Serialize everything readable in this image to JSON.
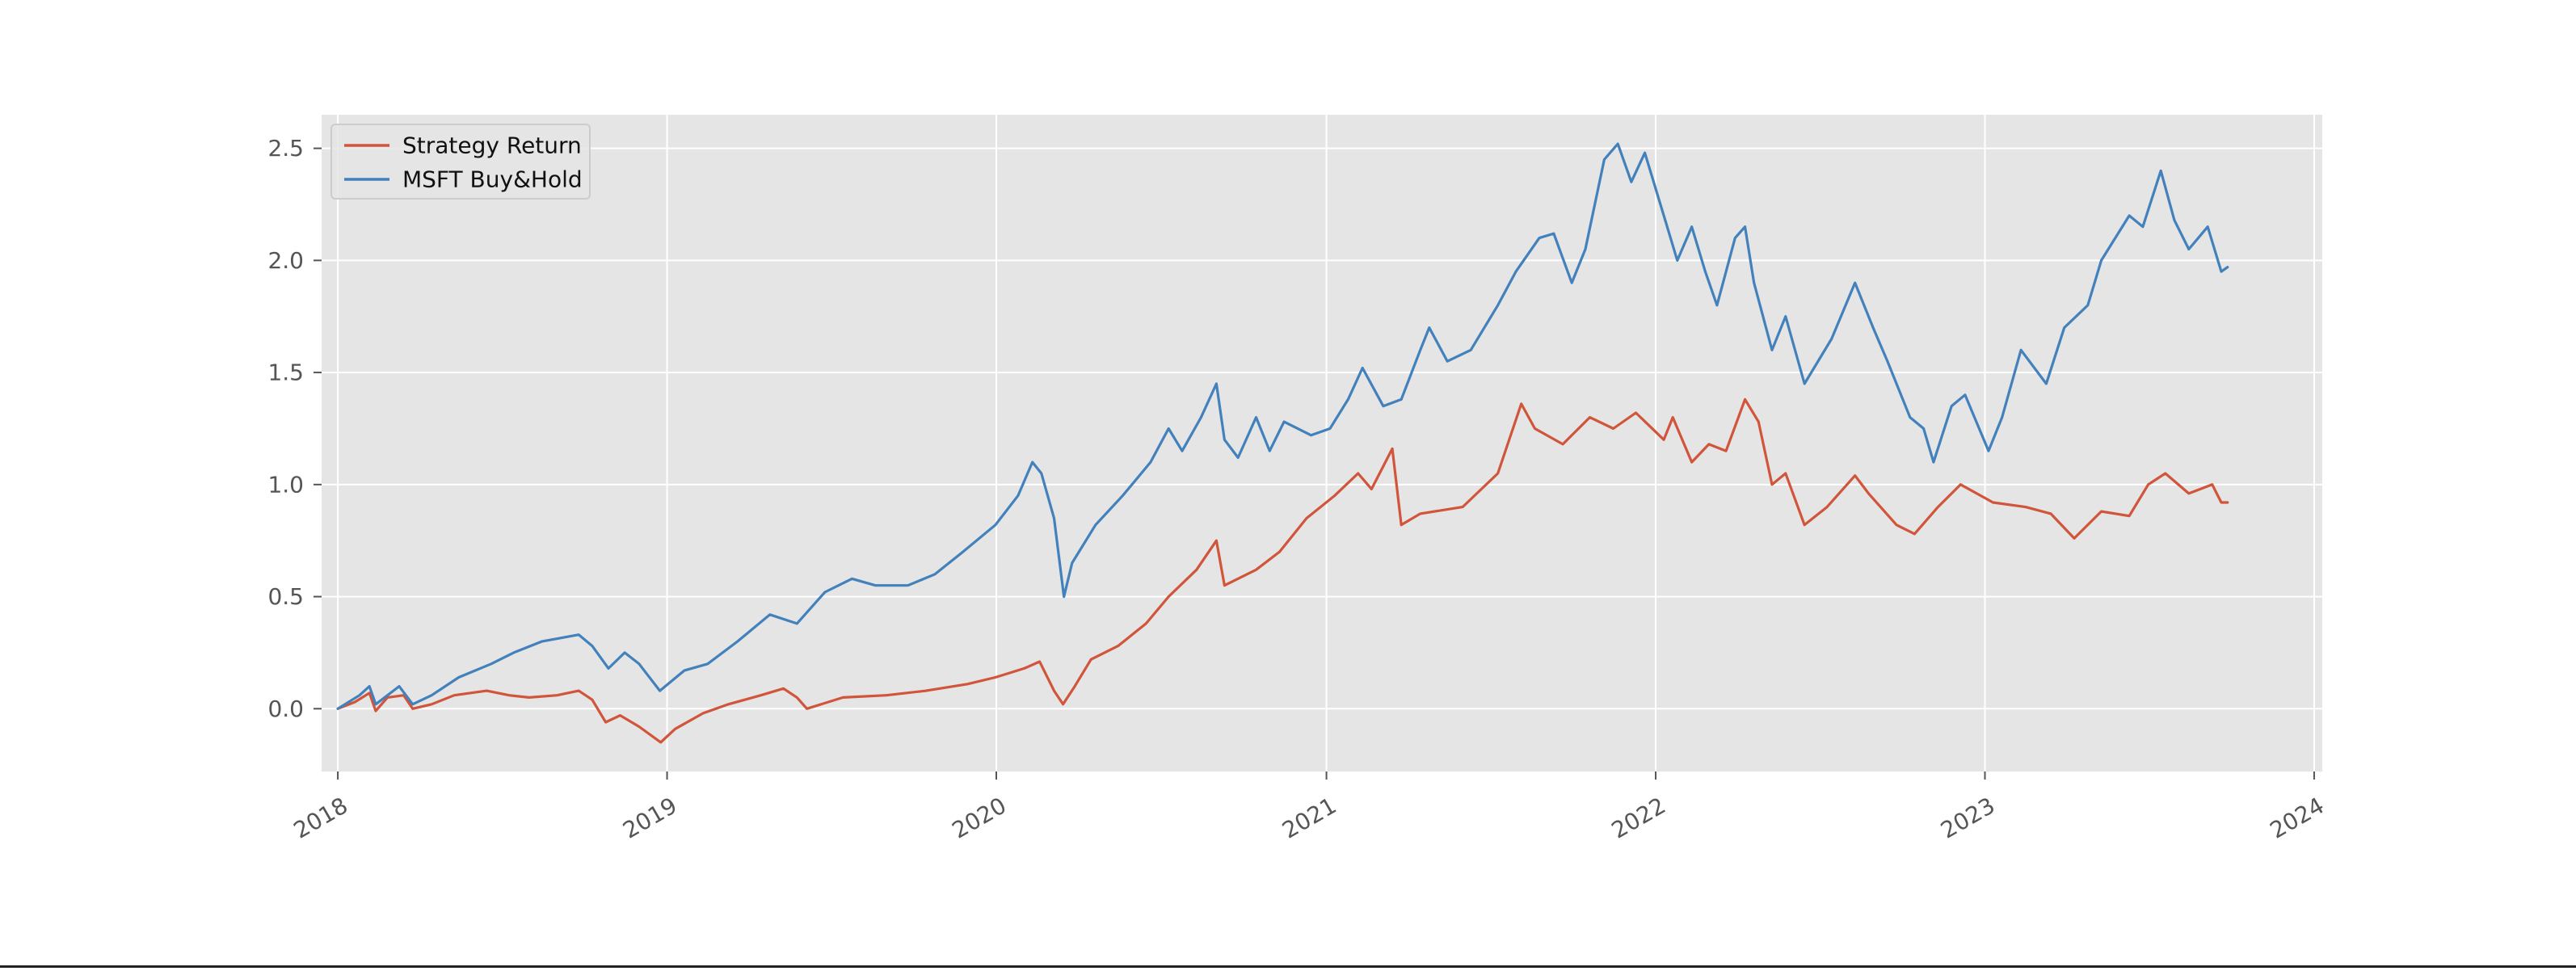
{
  "colors": {
    "plot_background": "#e5e5e5",
    "grid": "#ffffff",
    "tick_text": "#555555",
    "legend_background": "#e5e5e5",
    "legend_border": "#cccccc",
    "legend_text": "#111111"
  },
  "chart_data": {
    "type": "line",
    "title": "",
    "xlabel": "",
    "ylabel": "",
    "x_axis_type": "date",
    "xlim": [
      "2017-12-14",
      "2024-01-10"
    ],
    "ylim": [
      -0.28,
      2.65
    ],
    "grid": true,
    "legend_placement": "top-left",
    "x_ticks": [
      {
        "date": "2018-01-01",
        "label": "2018"
      },
      {
        "date": "2019-01-01",
        "label": "2019"
      },
      {
        "date": "2020-01-01",
        "label": "2020"
      },
      {
        "date": "2021-01-01",
        "label": "2021"
      },
      {
        "date": "2022-01-01",
        "label": "2022"
      },
      {
        "date": "2023-01-01",
        "label": "2023"
      },
      {
        "date": "2024-01-01",
        "label": "2024"
      }
    ],
    "y_ticks": [
      {
        "value": 0.0,
        "label": "0.0"
      },
      {
        "value": 0.5,
        "label": "0.5"
      },
      {
        "value": 1.0,
        "label": "1.0"
      },
      {
        "value": 1.5,
        "label": "1.5"
      },
      {
        "value": 2.0,
        "label": "2.0"
      },
      {
        "value": 2.5,
        "label": "2.5"
      }
    ],
    "series": [
      {
        "name": "Strategy Return",
        "color": "#d0553b",
        "points": [
          [
            "2018-01-01",
            0.0
          ],
          [
            "2018-01-20",
            0.03
          ],
          [
            "2018-02-05",
            0.07
          ],
          [
            "2018-02-12",
            -0.01
          ],
          [
            "2018-02-25",
            0.05
          ],
          [
            "2018-03-15",
            0.06
          ],
          [
            "2018-03-25",
            0.0
          ],
          [
            "2018-04-15",
            0.02
          ],
          [
            "2018-05-10",
            0.06
          ],
          [
            "2018-06-15",
            0.08
          ],
          [
            "2018-07-10",
            0.06
          ],
          [
            "2018-08-01",
            0.05
          ],
          [
            "2018-09-01",
            0.06
          ],
          [
            "2018-09-25",
            0.08
          ],
          [
            "2018-10-10",
            0.04
          ],
          [
            "2018-10-25",
            -0.06
          ],
          [
            "2018-11-10",
            -0.03
          ],
          [
            "2018-12-01",
            -0.08
          ],
          [
            "2018-12-25",
            -0.15
          ],
          [
            "2019-01-10",
            -0.09
          ],
          [
            "2019-02-10",
            -0.02
          ],
          [
            "2019-03-10",
            0.02
          ],
          [
            "2019-04-15",
            0.06
          ],
          [
            "2019-05-10",
            0.09
          ],
          [
            "2019-05-25",
            0.05
          ],
          [
            "2019-06-05",
            0.0
          ],
          [
            "2019-07-15",
            0.05
          ],
          [
            "2019-09-01",
            0.06
          ],
          [
            "2019-10-15",
            0.08
          ],
          [
            "2019-11-30",
            0.11
          ],
          [
            "2019-12-31",
            0.14
          ],
          [
            "2020-02-01",
            0.18
          ],
          [
            "2020-02-18",
            0.21
          ],
          [
            "2020-03-05",
            0.08
          ],
          [
            "2020-03-15",
            0.02
          ],
          [
            "2020-03-28",
            0.1
          ],
          [
            "2020-04-15",
            0.22
          ],
          [
            "2020-05-15",
            0.28
          ],
          [
            "2020-06-15",
            0.38
          ],
          [
            "2020-07-10",
            0.5
          ],
          [
            "2020-08-10",
            0.62
          ],
          [
            "2020-09-01",
            0.75
          ],
          [
            "2020-09-10",
            0.55
          ],
          [
            "2020-10-15",
            0.62
          ],
          [
            "2020-11-10",
            0.7
          ],
          [
            "2020-12-10",
            0.85
          ],
          [
            "2021-01-10",
            0.95
          ],
          [
            "2021-02-05",
            1.05
          ],
          [
            "2021-02-20",
            0.98
          ],
          [
            "2021-03-15",
            1.16
          ],
          [
            "2021-03-25",
            0.82
          ],
          [
            "2021-04-15",
            0.87
          ],
          [
            "2021-06-01",
            0.9
          ],
          [
            "2021-07-10",
            1.05
          ],
          [
            "2021-08-05",
            1.36
          ],
          [
            "2021-08-20",
            1.25
          ],
          [
            "2021-09-20",
            1.18
          ],
          [
            "2021-10-20",
            1.3
          ],
          [
            "2021-11-15",
            1.25
          ],
          [
            "2021-12-10",
            1.32
          ],
          [
            "2022-01-10",
            1.2
          ],
          [
            "2022-01-20",
            1.3
          ],
          [
            "2022-02-10",
            1.1
          ],
          [
            "2022-03-01",
            1.18
          ],
          [
            "2022-03-20",
            1.15
          ],
          [
            "2022-04-10",
            1.38
          ],
          [
            "2022-04-25",
            1.28
          ],
          [
            "2022-05-10",
            1.0
          ],
          [
            "2022-05-25",
            1.05
          ],
          [
            "2022-06-15",
            0.82
          ],
          [
            "2022-07-10",
            0.9
          ],
          [
            "2022-08-10",
            1.04
          ],
          [
            "2022-08-25",
            0.96
          ],
          [
            "2022-09-25",
            0.82
          ],
          [
            "2022-10-15",
            0.78
          ],
          [
            "2022-11-10",
            0.9
          ],
          [
            "2022-12-05",
            1.0
          ],
          [
            "2023-01-10",
            0.92
          ],
          [
            "2023-02-15",
            0.9
          ],
          [
            "2023-03-15",
            0.87
          ],
          [
            "2023-04-10",
            0.76
          ],
          [
            "2023-05-10",
            0.88
          ],
          [
            "2023-06-10",
            0.86
          ],
          [
            "2023-07-01",
            1.0
          ],
          [
            "2023-07-20",
            1.05
          ],
          [
            "2023-08-15",
            0.96
          ],
          [
            "2023-09-10",
            1.0
          ],
          [
            "2023-09-20",
            0.92
          ],
          [
            "2023-09-27",
            0.92
          ]
        ]
      },
      {
        "name": "MSFT Buy&Hold",
        "color": "#4281bb",
        "points": [
          [
            "2018-01-01",
            0.0
          ],
          [
            "2018-01-25",
            0.06
          ],
          [
            "2018-02-05",
            0.1
          ],
          [
            "2018-02-12",
            0.02
          ],
          [
            "2018-03-10",
            0.1
          ],
          [
            "2018-03-25",
            0.02
          ],
          [
            "2018-04-15",
            0.06
          ],
          [
            "2018-05-15",
            0.14
          ],
          [
            "2018-06-20",
            0.2
          ],
          [
            "2018-07-15",
            0.25
          ],
          [
            "2018-08-15",
            0.3
          ],
          [
            "2018-09-25",
            0.33
          ],
          [
            "2018-10-10",
            0.28
          ],
          [
            "2018-10-28",
            0.18
          ],
          [
            "2018-11-15",
            0.25
          ],
          [
            "2018-12-01",
            0.2
          ],
          [
            "2018-12-24",
            0.08
          ],
          [
            "2019-01-20",
            0.17
          ],
          [
            "2019-02-15",
            0.2
          ],
          [
            "2019-03-20",
            0.3
          ],
          [
            "2019-04-25",
            0.42
          ],
          [
            "2019-05-25",
            0.38
          ],
          [
            "2019-06-25",
            0.52
          ],
          [
            "2019-07-25",
            0.58
          ],
          [
            "2019-08-20",
            0.55
          ],
          [
            "2019-09-25",
            0.55
          ],
          [
            "2019-10-25",
            0.6
          ],
          [
            "2019-11-25",
            0.7
          ],
          [
            "2019-12-31",
            0.82
          ],
          [
            "2020-01-25",
            0.95
          ],
          [
            "2020-02-10",
            1.1
          ],
          [
            "2020-02-20",
            1.05
          ],
          [
            "2020-03-05",
            0.85
          ],
          [
            "2020-03-16",
            0.5
          ],
          [
            "2020-03-25",
            0.65
          ],
          [
            "2020-04-20",
            0.82
          ],
          [
            "2020-05-20",
            0.95
          ],
          [
            "2020-06-20",
            1.1
          ],
          [
            "2020-07-10",
            1.25
          ],
          [
            "2020-07-25",
            1.15
          ],
          [
            "2020-08-15",
            1.3
          ],
          [
            "2020-09-01",
            1.45
          ],
          [
            "2020-09-10",
            1.2
          ],
          [
            "2020-09-25",
            1.12
          ],
          [
            "2020-10-15",
            1.3
          ],
          [
            "2020-10-30",
            1.15
          ],
          [
            "2020-11-15",
            1.28
          ],
          [
            "2020-12-15",
            1.22
          ],
          [
            "2021-01-05",
            1.25
          ],
          [
            "2021-01-25",
            1.38
          ],
          [
            "2021-02-10",
            1.52
          ],
          [
            "2021-03-05",
            1.35
          ],
          [
            "2021-03-25",
            1.38
          ],
          [
            "2021-04-15",
            1.6
          ],
          [
            "2021-04-25",
            1.7
          ],
          [
            "2021-05-15",
            1.55
          ],
          [
            "2021-06-10",
            1.6
          ],
          [
            "2021-07-10",
            1.8
          ],
          [
            "2021-07-30",
            1.95
          ],
          [
            "2021-08-25",
            2.1
          ],
          [
            "2021-09-10",
            2.12
          ],
          [
            "2021-09-30",
            1.9
          ],
          [
            "2021-10-15",
            2.05
          ],
          [
            "2021-11-05",
            2.45
          ],
          [
            "2021-11-20",
            2.52
          ],
          [
            "2021-12-05",
            2.35
          ],
          [
            "2021-12-20",
            2.48
          ],
          [
            "2022-01-10",
            2.2
          ],
          [
            "2022-01-25",
            2.0
          ],
          [
            "2022-02-10",
            2.15
          ],
          [
            "2022-02-25",
            1.95
          ],
          [
            "2022-03-10",
            1.8
          ],
          [
            "2022-03-30",
            2.1
          ],
          [
            "2022-04-10",
            2.15
          ],
          [
            "2022-04-20",
            1.9
          ],
          [
            "2022-05-10",
            1.6
          ],
          [
            "2022-05-25",
            1.75
          ],
          [
            "2022-06-15",
            1.45
          ],
          [
            "2022-07-15",
            1.65
          ],
          [
            "2022-08-10",
            1.9
          ],
          [
            "2022-08-30",
            1.7
          ],
          [
            "2022-09-15",
            1.55
          ],
          [
            "2022-10-10",
            1.3
          ],
          [
            "2022-10-25",
            1.25
          ],
          [
            "2022-11-05",
            1.1
          ],
          [
            "2022-11-25",
            1.35
          ],
          [
            "2022-12-10",
            1.4
          ],
          [
            "2023-01-05",
            1.15
          ],
          [
            "2023-01-20",
            1.3
          ],
          [
            "2023-02-10",
            1.6
          ],
          [
            "2023-03-10",
            1.45
          ],
          [
            "2023-03-30",
            1.7
          ],
          [
            "2023-04-25",
            1.8
          ],
          [
            "2023-05-10",
            2.0
          ],
          [
            "2023-06-10",
            2.2
          ],
          [
            "2023-06-25",
            2.15
          ],
          [
            "2023-07-15",
            2.4
          ],
          [
            "2023-07-30",
            2.18
          ],
          [
            "2023-08-15",
            2.05
          ],
          [
            "2023-09-05",
            2.15
          ],
          [
            "2023-09-20",
            1.95
          ],
          [
            "2023-09-27",
            1.97
          ]
        ]
      }
    ]
  }
}
